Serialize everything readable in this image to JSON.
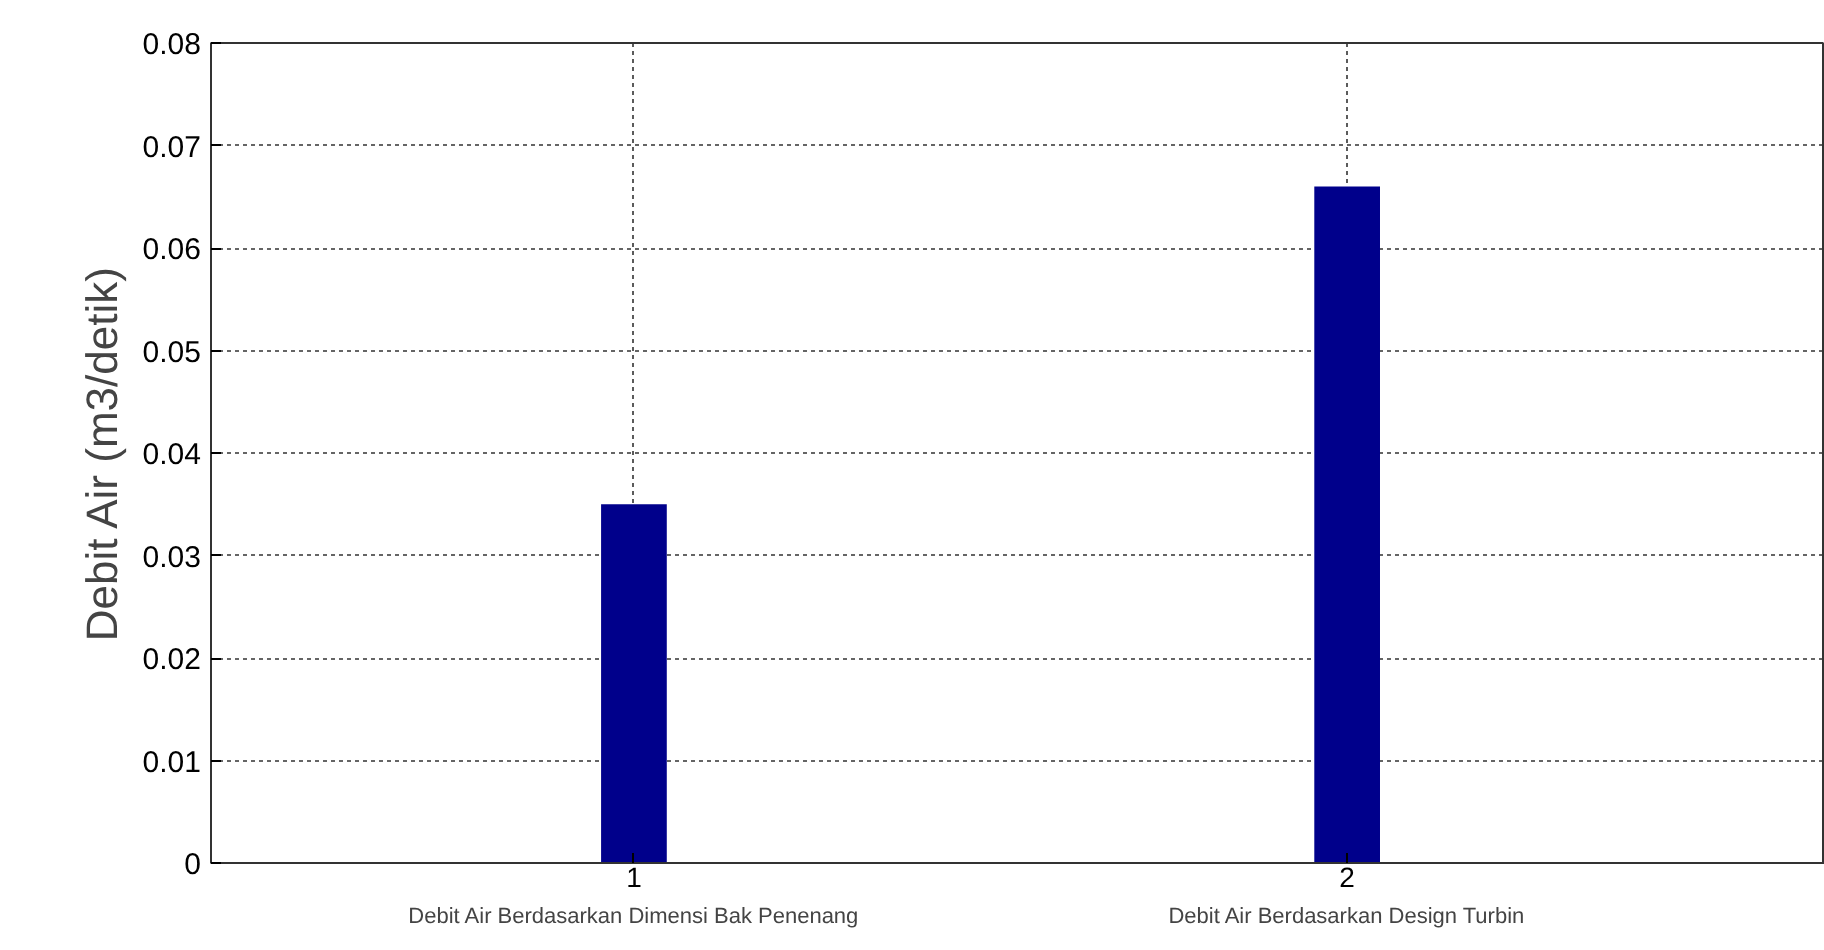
{
  "chart_data": {
    "type": "bar",
    "ylabel": "Debit Air (m3/detik)",
    "x": [
      1,
      2
    ],
    "values": [
      0.035,
      0.066
    ],
    "color": "#00008b",
    "xlim": [
      0.407,
      2.67
    ],
    "xticks": [
      1,
      2
    ],
    "ylim": [
      0,
      0.08
    ],
    "yticks": [
      0,
      0.01,
      0.02,
      0.03,
      0.04,
      0.05,
      0.06,
      0.07,
      0.08
    ],
    "grid": true,
    "annotations": [
      "Debit Air Berdasarkan Dimensi Bak Penenang",
      "Debit Air Berdasarkan Design Turbin"
    ]
  }
}
